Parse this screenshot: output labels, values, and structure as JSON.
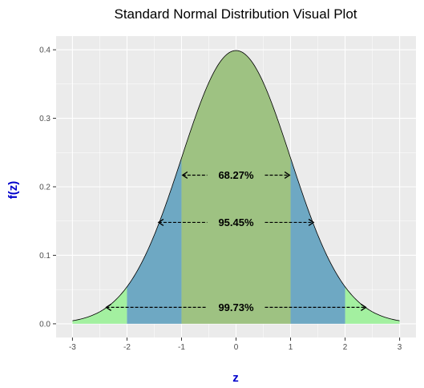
{
  "chart_data": {
    "type": "area",
    "title": "Standard Normal Distribution Visual Plot",
    "xlabel": "z",
    "ylabel": "f(z)",
    "xlim": [
      -3.3,
      3.3
    ],
    "ylim": [
      -0.02,
      0.42
    ],
    "x_ticks": [
      -3,
      -2,
      -1,
      0,
      1,
      2,
      3
    ],
    "x_tick_labels": [
      "-3",
      "-2",
      "-1",
      "0",
      "1",
      "2",
      "3"
    ],
    "y_ticks": [
      0.0,
      0.1,
      0.2,
      0.3,
      0.4
    ],
    "y_tick_labels": [
      "0.0",
      "0.1",
      "0.2",
      "0.3",
      "0.4"
    ],
    "grid": true,
    "curve": {
      "function": "standard normal density",
      "x_range": [
        -3,
        3
      ],
      "peak": 0.399
    },
    "regions": [
      {
        "from": -3,
        "to": -2,
        "color": "#a3f0a0"
      },
      {
        "from": 2,
        "to": 3,
        "color": "#a3f0a0"
      },
      {
        "from": -2,
        "to": -1,
        "color": "#6ea8c3"
      },
      {
        "from": 1,
        "to": 2,
        "color": "#6ea8c3"
      },
      {
        "from": -1,
        "to": 1,
        "color": "#9ec282"
      }
    ],
    "annotations": [
      {
        "label": "68.27%",
        "from": -0.98,
        "to": 0.98,
        "y": 0.217
      },
      {
        "label": "95.45%",
        "from": -1.42,
        "to": 1.42,
        "y": 0.148
      },
      {
        "label": "99.73%",
        "from": -2.38,
        "to": 2.38,
        "y": 0.024
      }
    ],
    "colors": {
      "panel": "#ebebeb",
      "grid_major": "#ffffff",
      "axis_title": "#0000cc",
      "curve": "#000000"
    }
  }
}
